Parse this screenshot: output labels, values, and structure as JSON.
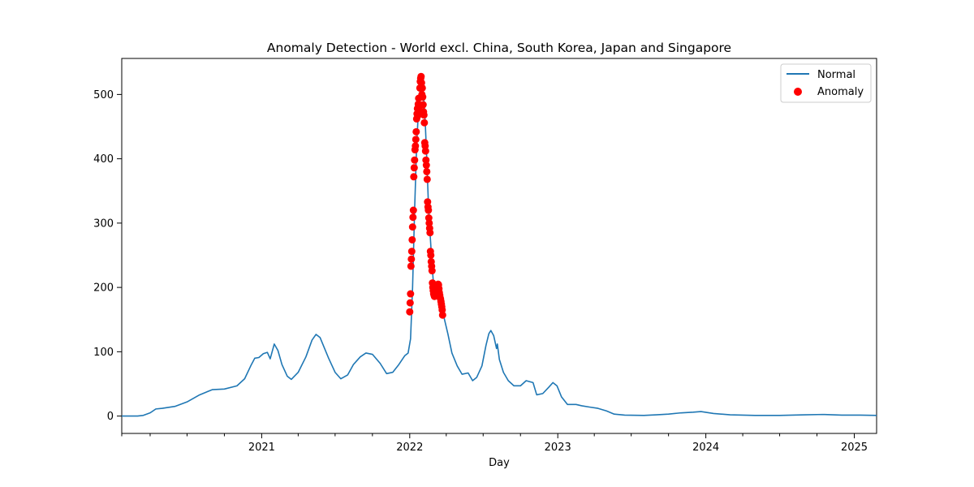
{
  "chart_data": {
    "type": "line",
    "title": "Anomaly Detection - World excl. China, South Korea, Japan and Singapore",
    "xlabel": "Day",
    "ylabel": "",
    "xlim": [
      "2020-01-22",
      "2025-02-25"
    ],
    "ylim": [
      -27,
      556
    ],
    "x_ticks": [
      {
        "date": "2021-01-01",
        "label": "2021"
      },
      {
        "date": "2022-01-01",
        "label": "2022"
      },
      {
        "date": "2023-01-01",
        "label": "2023"
      },
      {
        "date": "2024-01-01",
        "label": "2024"
      },
      {
        "date": "2025-01-01",
        "label": "2025"
      }
    ],
    "x_minor_ticks": [
      "2020-01-22",
      "2020-04-01",
      "2020-07-01",
      "2020-10-01",
      "2021-04-01",
      "2021-07-01",
      "2021-10-01",
      "2022-04-01",
      "2022-07-01",
      "2022-10-01",
      "2023-04-01",
      "2023-07-01",
      "2023-10-01",
      "2024-04-01",
      "2024-07-01",
      "2024-10-01"
    ],
    "y_ticks": [
      0,
      100,
      200,
      300,
      400,
      500
    ],
    "grid": false,
    "legend": {
      "position": "top-right",
      "entries": [
        "Normal",
        "Anomaly"
      ]
    },
    "colors": {
      "normal": "#1f77b4",
      "anomaly": "#ff0000"
    },
    "series": [
      {
        "name": "Normal",
        "type": "line",
        "points": [
          [
            "2020-01-22",
            0
          ],
          [
            "2020-03-01",
            0
          ],
          [
            "2020-03-15",
            1
          ],
          [
            "2020-04-01",
            5
          ],
          [
            "2020-04-15",
            11
          ],
          [
            "2020-05-01",
            12
          ],
          [
            "2020-06-01",
            15
          ],
          [
            "2020-07-01",
            22
          ],
          [
            "2020-08-01",
            33
          ],
          [
            "2020-09-01",
            41
          ],
          [
            "2020-10-01",
            42
          ],
          [
            "2020-11-01",
            47
          ],
          [
            "2020-11-20",
            58
          ],
          [
            "2020-12-05",
            78
          ],
          [
            "2020-12-15",
            90
          ],
          [
            "2020-12-25",
            91
          ],
          [
            "2021-01-05",
            97
          ],
          [
            "2021-01-15",
            99
          ],
          [
            "2021-01-22",
            89
          ],
          [
            "2021-02-01",
            112
          ],
          [
            "2021-02-10",
            102
          ],
          [
            "2021-02-20",
            80
          ],
          [
            "2021-03-05",
            62
          ],
          [
            "2021-03-15",
            57
          ],
          [
            "2021-04-01",
            68
          ],
          [
            "2021-04-20",
            92
          ],
          [
            "2021-05-05",
            118
          ],
          [
            "2021-05-15",
            127
          ],
          [
            "2021-05-25",
            122
          ],
          [
            "2021-06-15",
            90
          ],
          [
            "2021-07-01",
            68
          ],
          [
            "2021-07-15",
            58
          ],
          [
            "2021-08-01",
            64
          ],
          [
            "2021-08-15",
            80
          ],
          [
            "2021-09-01",
            92
          ],
          [
            "2021-09-15",
            98
          ],
          [
            "2021-10-01",
            96
          ],
          [
            "2021-10-20",
            82
          ],
          [
            "2021-11-05",
            66
          ],
          [
            "2021-11-20",
            68
          ],
          [
            "2021-12-05",
            80
          ],
          [
            "2021-12-20",
            94
          ],
          [
            "2021-12-28",
            98
          ],
          [
            "2022-01-03",
            120
          ],
          [
            "2022-01-08",
            200
          ],
          [
            "2022-01-13",
            320
          ],
          [
            "2022-01-18",
            420
          ],
          [
            "2022-01-22",
            470
          ],
          [
            "2022-01-26",
            500
          ],
          [
            "2022-01-31",
            528
          ],
          [
            "2022-02-04",
            500
          ],
          [
            "2022-02-08",
            460
          ],
          [
            "2022-02-12",
            400
          ],
          [
            "2022-02-16",
            330
          ],
          [
            "2022-02-20",
            285
          ],
          [
            "2022-02-24",
            245
          ],
          [
            "2022-02-28",
            210
          ],
          [
            "2022-03-04",
            188
          ],
          [
            "2022-03-08",
            192
          ],
          [
            "2022-03-12",
            200
          ],
          [
            "2022-03-15",
            203
          ],
          [
            "2022-03-19",
            185
          ],
          [
            "2022-03-23",
            165
          ],
          [
            "2022-03-27",
            152
          ],
          [
            "2022-04-05",
            128
          ],
          [
            "2022-04-15",
            98
          ],
          [
            "2022-04-28",
            78
          ],
          [
            "2022-05-10",
            65
          ],
          [
            "2022-05-25",
            67
          ],
          [
            "2022-06-05",
            55
          ],
          [
            "2022-06-15",
            60
          ],
          [
            "2022-06-28",
            78
          ],
          [
            "2022-07-08",
            110
          ],
          [
            "2022-07-15",
            128
          ],
          [
            "2022-07-20",
            133
          ],
          [
            "2022-07-27",
            125
          ],
          [
            "2022-08-03",
            105
          ],
          [
            "2022-08-05",
            112
          ],
          [
            "2022-08-10",
            88
          ],
          [
            "2022-08-20",
            68
          ],
          [
            "2022-09-01",
            55
          ],
          [
            "2022-09-15",
            47
          ],
          [
            "2022-10-01",
            47
          ],
          [
            "2022-10-15",
            55
          ],
          [
            "2022-11-01",
            52
          ],
          [
            "2022-11-10",
            33
          ],
          [
            "2022-11-25",
            35
          ],
          [
            "2022-12-10",
            45
          ],
          [
            "2022-12-20",
            52
          ],
          [
            "2022-12-30",
            47
          ],
          [
            "2023-01-10",
            30
          ],
          [
            "2023-01-25",
            18
          ],
          [
            "2023-02-15",
            18
          ],
          [
            "2023-03-01",
            16
          ],
          [
            "2023-03-20",
            14
          ],
          [
            "2023-04-10",
            12
          ],
          [
            "2023-05-01",
            8
          ],
          [
            "2023-05-20",
            3
          ],
          [
            "2023-06-15",
            1.5
          ],
          [
            "2023-08-01",
            1
          ],
          [
            "2023-09-01",
            2
          ],
          [
            "2023-10-01",
            3
          ],
          [
            "2023-11-01",
            5
          ],
          [
            "2023-12-01",
            6
          ],
          [
            "2023-12-20",
            7
          ],
          [
            "2024-01-20",
            4
          ],
          [
            "2024-03-01",
            2
          ],
          [
            "2024-05-01",
            1
          ],
          [
            "2024-07-01",
            1
          ],
          [
            "2024-09-01",
            2
          ],
          [
            "2024-10-15",
            2.5
          ],
          [
            "2024-12-01",
            1.5
          ],
          [
            "2025-01-15",
            1.5
          ],
          [
            "2025-02-25",
            1
          ]
        ]
      },
      {
        "name": "Anomaly",
        "type": "scatter",
        "points": [
          [
            "2022-01-01",
            162
          ],
          [
            "2022-01-02",
            176
          ],
          [
            "2022-01-03",
            190
          ],
          [
            "2022-01-04",
            233
          ],
          [
            "2022-01-05",
            244
          ],
          [
            "2022-01-06",
            256
          ],
          [
            "2022-01-07",
            274
          ],
          [
            "2022-01-08",
            294
          ],
          [
            "2022-01-09",
            309
          ],
          [
            "2022-01-10",
            320
          ],
          [
            "2022-01-11",
            372
          ],
          [
            "2022-01-12",
            386
          ],
          [
            "2022-01-13",
            398
          ],
          [
            "2022-01-14",
            414
          ],
          [
            "2022-01-15",
            420
          ],
          [
            "2022-01-16",
            430
          ],
          [
            "2022-01-17",
            442
          ],
          [
            "2022-01-18",
            462
          ],
          [
            "2022-01-19",
            470
          ],
          [
            "2022-01-20",
            478
          ],
          [
            "2022-01-21",
            467
          ],
          [
            "2022-01-22",
            485
          ],
          [
            "2022-01-23",
            494
          ],
          [
            "2022-01-24",
            472
          ],
          [
            "2022-01-25",
            482
          ],
          [
            "2022-01-26",
            510
          ],
          [
            "2022-01-27",
            520
          ],
          [
            "2022-01-28",
            525
          ],
          [
            "2022-01-29",
            528
          ],
          [
            "2022-01-30",
            518
          ],
          [
            "2022-01-31",
            500
          ],
          [
            "2022-02-01",
            510
          ],
          [
            "2022-02-02",
            496
          ],
          [
            "2022-02-03",
            484
          ],
          [
            "2022-02-04",
            473
          ],
          [
            "2022-02-05",
            468
          ],
          [
            "2022-02-06",
            456
          ],
          [
            "2022-02-07",
            425
          ],
          [
            "2022-02-08",
            420
          ],
          [
            "2022-02-09",
            412
          ],
          [
            "2022-02-10",
            398
          ],
          [
            "2022-02-11",
            390
          ],
          [
            "2022-02-12",
            380
          ],
          [
            "2022-02-13",
            368
          ],
          [
            "2022-02-14",
            333
          ],
          [
            "2022-02-15",
            325
          ],
          [
            "2022-02-16",
            320
          ],
          [
            "2022-02-17",
            308
          ],
          [
            "2022-02-18",
            300
          ],
          [
            "2022-02-19",
            292
          ],
          [
            "2022-02-20",
            285
          ],
          [
            "2022-02-21",
            256
          ],
          [
            "2022-02-22",
            250
          ],
          [
            "2022-02-23",
            240
          ],
          [
            "2022-02-24",
            233
          ],
          [
            "2022-02-25",
            226
          ],
          [
            "2022-02-26",
            207
          ],
          [
            "2022-02-27",
            200
          ],
          [
            "2022-02-28",
            195
          ],
          [
            "2022-03-01",
            190
          ],
          [
            "2022-03-02",
            188
          ],
          [
            "2022-03-03",
            186
          ],
          [
            "2022-03-04",
            188
          ],
          [
            "2022-03-05",
            190
          ],
          [
            "2022-03-06",
            192
          ],
          [
            "2022-03-07",
            194
          ],
          [
            "2022-03-08",
            196
          ],
          [
            "2022-03-09",
            198
          ],
          [
            "2022-03-10",
            200
          ],
          [
            "2022-03-11",
            203
          ],
          [
            "2022-03-12",
            205
          ],
          [
            "2022-03-13",
            204
          ],
          [
            "2022-03-14",
            198
          ],
          [
            "2022-03-15",
            192
          ],
          [
            "2022-03-16",
            188
          ],
          [
            "2022-03-17",
            184
          ],
          [
            "2022-03-18",
            182
          ],
          [
            "2022-03-19",
            178
          ],
          [
            "2022-03-20",
            174
          ],
          [
            "2022-03-21",
            170
          ],
          [
            "2022-03-22",
            165
          ],
          [
            "2022-03-23",
            157
          ]
        ]
      }
    ]
  }
}
